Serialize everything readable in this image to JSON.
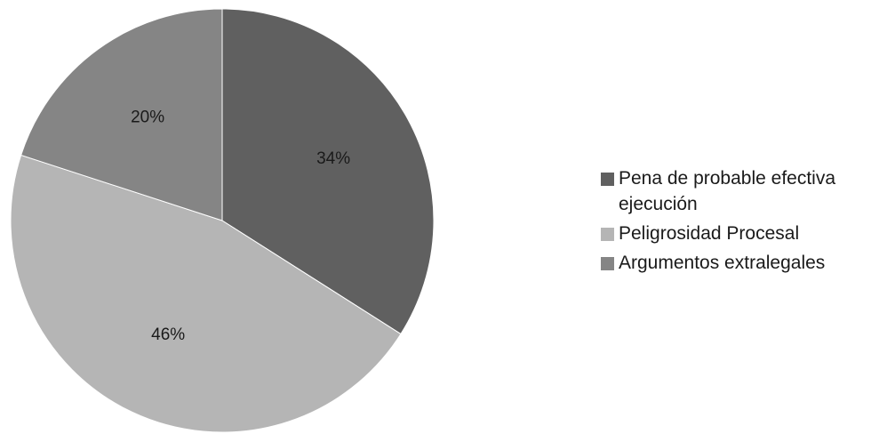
{
  "chart_data": {
    "type": "pie",
    "title": "",
    "slices": [
      {
        "label": "Pena de probable efectiva ejecución",
        "value": 34,
        "display": "34%",
        "color": "#606060"
      },
      {
        "label": "Peligrosidad Procesal",
        "value": 46,
        "display": "46%",
        "color": "#b5b5b5"
      },
      {
        "label": "Argumentos extralegales",
        "value": 20,
        "display": "20%",
        "color": "#858585"
      }
    ],
    "start_angle": "12 o'clock",
    "direction": "clockwise",
    "legend_position": "right"
  }
}
